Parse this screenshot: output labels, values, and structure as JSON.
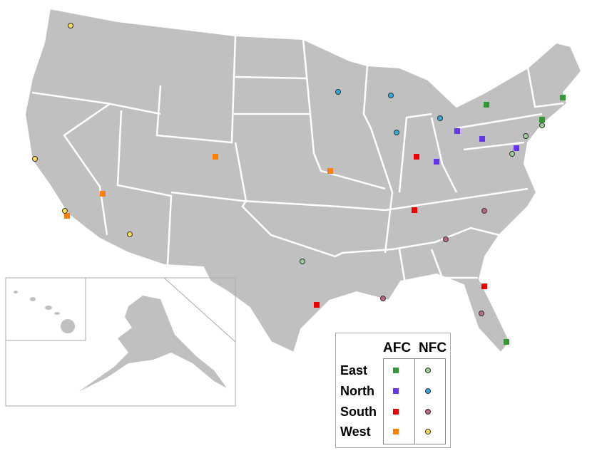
{
  "legend": {
    "conferences": [
      "AFC",
      "NFC"
    ],
    "divisions": [
      {
        "label": "East",
        "afc_color": "#339933",
        "nfc_color": "#99cc99"
      },
      {
        "label": "North",
        "afc_color": "#6633ee",
        "nfc_color": "#33aadd"
      },
      {
        "label": "South",
        "afc_color": "#ee0000",
        "nfc_color": "#bb6688"
      },
      {
        "label": "West",
        "afc_color": "#ff8000",
        "nfc_color": "#ffdd55"
      }
    ]
  },
  "map_colors": {
    "land": "#c0c0c0",
    "borders": "#ffffff",
    "inset_frame": "#aaaaaa"
  }
}
